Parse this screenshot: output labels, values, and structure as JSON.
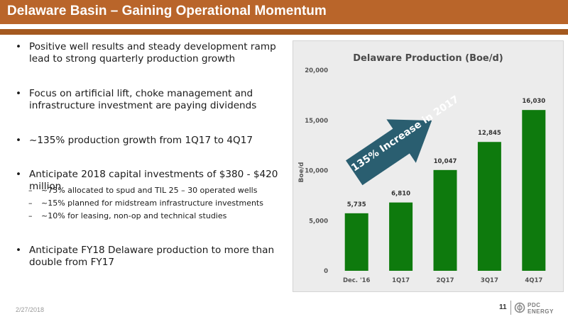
{
  "slide": {
    "title": "Delaware Basin – Gaining Operational Momentum",
    "bullets": [
      "Positive well results and steady development ramp lead to strong quarterly production growth",
      "Focus on artificial lift, choke management and infrastructure investment are paying dividends",
      "~135% production growth from 1Q17 to 4Q17",
      "Anticipate 2018 capital investments of $380 - $420 million",
      "Anticipate FY18 Delaware production to more than double from FY17"
    ],
    "sub_bullets": [
      "~75% allocated to spud and TIL 25 – 30 operated wells",
      "~15% planned for midstream infrastructure investments",
      "~10% for leasing, non-op and technical studies"
    ],
    "bullet_marker": "•",
    "sub_marker": "–"
  },
  "footer": {
    "date": "2/27/2018",
    "page_number": "11",
    "logo_top": "PDC",
    "logo_bottom": "ENERGY"
  },
  "colors": {
    "title_bar": "#b9652a",
    "bar_fill": "#0e7a0d",
    "arrow_fill": "#2a5e70"
  },
  "icons": {
    "logo": "pdc-energy-logo-icon"
  },
  "chart_data": {
    "type": "bar",
    "title": "Delaware Production (Boe/d)",
    "ylabel": "Boe/d",
    "xlabel": "",
    "categories": [
      "Dec. '16",
      "1Q17",
      "2Q17",
      "3Q17",
      "4Q17"
    ],
    "values": [
      5735,
      6810,
      10047,
      12845,
      16030
    ],
    "value_labels": [
      "5,735",
      "6,810",
      "10,047",
      "12,845",
      "16,030"
    ],
    "ylim": [
      0,
      20000
    ],
    "yticks": [
      0,
      5000,
      10000,
      15000,
      20000
    ],
    "ytick_labels": [
      "0",
      "5,000",
      "10,000",
      "15,000",
      "20,000"
    ],
    "grid": false,
    "legend": "none",
    "annotation": "135% Increase in 2017"
  }
}
